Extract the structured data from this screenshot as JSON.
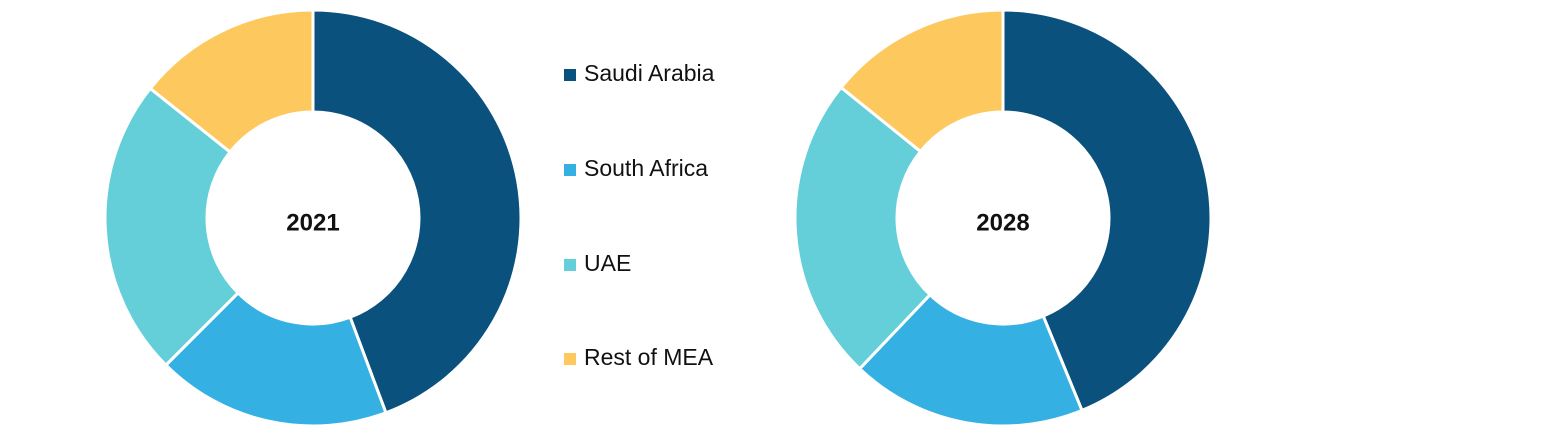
{
  "chart_data": [
    {
      "type": "pie",
      "title": "2021",
      "categories": [
        "Saudi Arabia",
        "South Africa",
        "UAE",
        "Rest of MEA"
      ],
      "values": [
        44.3,
        18.2,
        23.2,
        14.3
      ],
      "colors": [
        "#0a527d",
        "#35b0e2",
        "#64cfd9",
        "#fdc95f"
      ]
    },
    {
      "type": "pie",
      "title": "2028",
      "values": [
        43.8,
        18.3,
        23.7,
        14.2
      ]
    }
  ]
}
